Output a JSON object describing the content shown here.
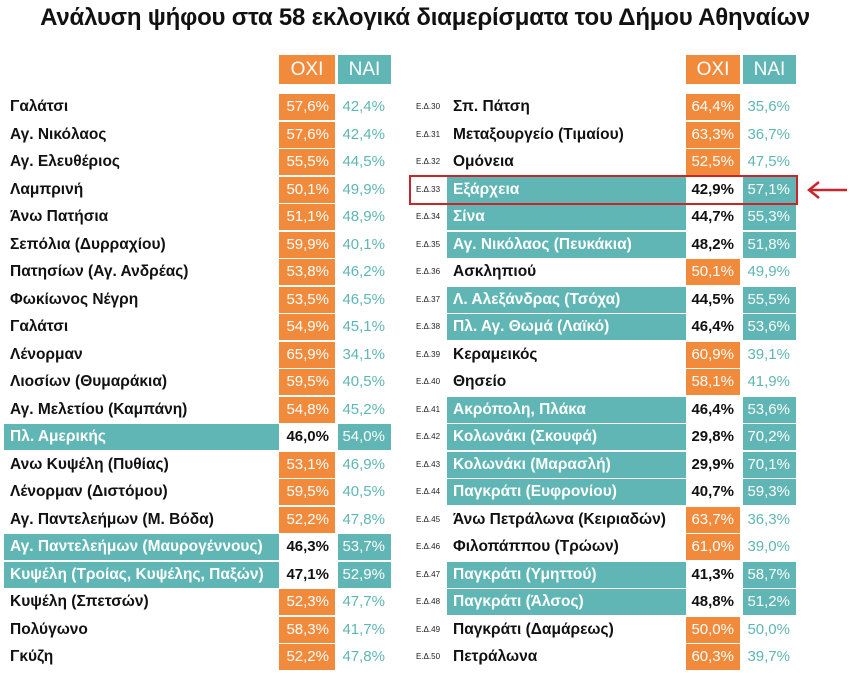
{
  "title": "Ανάλυση ψήφου στα 58 εκλογικά διαμερίσματα του Δήμου Αθηναίων",
  "headers": {
    "oxi": "ΟΧΙ",
    "nai": "ΝΑΙ"
  },
  "colors": {
    "oxi": "#f28a3c",
    "nai": "#5fb6b4",
    "highlight_box": "#c8262c"
  },
  "highlighted_row": "Εξάρχεια",
  "chart_data": {
    "type": "table",
    "title": "Ανάλυση ψήφου στα 58 εκλογικά διαμερίσματα του Δήμου Αθηναίων",
    "columns": [
      "ΟΧΙ",
      "ΝΑΙ"
    ],
    "left": [
      {
        "name": "Γαλάτσι",
        "oxi": "57,6%",
        "nai": "42,4%"
      },
      {
        "name": "Αγ. Νικόλαος",
        "oxi": "57,6%",
        "nai": "42,4%"
      },
      {
        "name": "Αγ. Ελευθέριος",
        "oxi": "55,5%",
        "nai": "44,5%"
      },
      {
        "name": "Λαμπρινή",
        "oxi": "50,1%",
        "nai": "49,9%"
      },
      {
        "name": "Άνω Πατήσια",
        "oxi": "51,1%",
        "nai": "48,9%"
      },
      {
        "name": "Σεπόλια (Δυρραχίου)",
        "oxi": "59,9%",
        "nai": "40,1%"
      },
      {
        "name": "Πατησίων (Αγ. Ανδρέας)",
        "oxi": "53,8%",
        "nai": "46,2%"
      },
      {
        "name": "Φωκίωνος Νέγρη",
        "oxi": "53,5%",
        "nai": "46,5%"
      },
      {
        "name": "Γαλάτσι",
        "oxi": "54,9%",
        "nai": "45,1%"
      },
      {
        "name": "Λένορμαν",
        "oxi": "65,9%",
        "nai": "34,1%"
      },
      {
        "name": "Λιοσίων (Θυμαράκια)",
        "oxi": "59,5%",
        "nai": "40,5%"
      },
      {
        "name": "Αγ. Μελετίου (Καμπάνη)",
        "oxi": "54,8%",
        "nai": "45,2%"
      },
      {
        "name": "Πλ. Αμερικής",
        "oxi": "46,0%",
        "nai": "54,0%"
      },
      {
        "name": "Ανω Κυψέλη (Πυθίας)",
        "oxi": "53,1%",
        "nai": "46,9%"
      },
      {
        "name": "Λένορμαν (Διστόμου)",
        "oxi": "59,5%",
        "nai": "40,5%"
      },
      {
        "name": "Αγ. Παντελεήμων (Μ. Βόδα)",
        "oxi": "52,2%",
        "nai": "47,8%"
      },
      {
        "name": "Αγ. Παντελεήμων (Μαυρογέννους)",
        "oxi": "46,3%",
        "nai": "53,7%"
      },
      {
        "name": "Κυψέλη (Τροίας, Κυψέλης, Παξών)",
        "oxi": "47,1%",
        "nai": "52,9%"
      },
      {
        "name": "Κυψέλη (Σπετσών)",
        "oxi": "52,3%",
        "nai": "47,7%"
      },
      {
        "name": "Πολύγωνο",
        "oxi": "58,3%",
        "nai": "41,7%"
      },
      {
        "name": "Γκύζη",
        "oxi": "52,2%",
        "nai": "47,8%"
      }
    ],
    "right": [
      {
        "code": "Ε.Δ.30",
        "name": "Σπ. Πάτση",
        "oxi": "64,4%",
        "nai": "35,6%"
      },
      {
        "code": "Ε.Δ.31",
        "name": "Μεταξουργείο (Τιμαίου)",
        "oxi": "63,3%",
        "nai": "36,7%"
      },
      {
        "code": "Ε.Δ.32",
        "name": "Ομόνεια",
        "oxi": "52,5%",
        "nai": "47,5%"
      },
      {
        "code": "Ε.Δ.33",
        "name": "Εξάρχεια",
        "oxi": "42,9%",
        "nai": "57,1%"
      },
      {
        "code": "Ε.Δ.34",
        "name": "Σίνα",
        "oxi": "44,7%",
        "nai": "55,3%"
      },
      {
        "code": "Ε.Δ.35",
        "name": "Αγ. Νικόλαος (Πευκάκια)",
        "oxi": "48,2%",
        "nai": "51,8%"
      },
      {
        "code": "Ε.Δ.36",
        "name": "Ασκληπιού",
        "oxi": "50,1%",
        "nai": "49,9%"
      },
      {
        "code": "Ε.Δ.37",
        "name": "Λ. Αλεξάνδρας (Τσόχα)",
        "oxi": "44,5%",
        "nai": "55,5%"
      },
      {
        "code": "Ε.Δ.38",
        "name": "Πλ. Αγ. Θωμά (Λαϊκό)",
        "oxi": "46,4%",
        "nai": "53,6%"
      },
      {
        "code": "Ε.Δ.39",
        "name": "Κεραμεικός",
        "oxi": "60,9%",
        "nai": "39,1%"
      },
      {
        "code": "Ε.Δ.40",
        "name": "Θησείο",
        "oxi": "58,1%",
        "nai": "41,9%"
      },
      {
        "code": "Ε.Δ.41",
        "name": "Ακρόπολη, Πλάκα",
        "oxi": "46,4%",
        "nai": "53,6%"
      },
      {
        "code": "Ε.Δ.42",
        "name": "Κολωνάκι (Σκουφά)",
        "oxi": "29,8%",
        "nai": "70,2%"
      },
      {
        "code": "Ε.Δ.43",
        "name": "Κολωνάκι (Μαρασλή)",
        "oxi": "29,9%",
        "nai": "70,1%"
      },
      {
        "code": "Ε.Δ.44",
        "name": "Παγκράτι (Ευφρονίου)",
        "oxi": "40,7%",
        "nai": "59,3%"
      },
      {
        "code": "Ε.Δ.45",
        "name": "Άνω Πετράλωνα (Κειριαδών)",
        "oxi": "63,7%",
        "nai": "36,3%"
      },
      {
        "code": "Ε.Δ.46",
        "name": "Φιλοπάππου (Τρώων)",
        "oxi": "61,0%",
        "nai": "39,0%"
      },
      {
        "code": "Ε.Δ.47",
        "name": "Παγκράτι (Υμηττού)",
        "oxi": "41,3%",
        "nai": "58,7%"
      },
      {
        "code": "Ε.Δ.48",
        "name": "Παγκράτι (Άλσος)",
        "oxi": "48,8%",
        "nai": "51,2%"
      },
      {
        "code": "Ε.Δ.49",
        "name": "Παγκράτι (Δαμάρεως)",
        "oxi": "50,0%",
        "nai": "50,0%"
      },
      {
        "code": "Ε.Δ.50",
        "name": "Πετράλωνα",
        "oxi": "60,3%",
        "nai": "39,7%"
      }
    ]
  }
}
